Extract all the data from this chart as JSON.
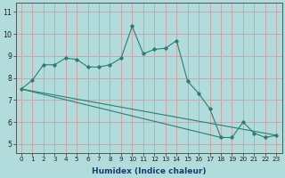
{
  "xlabel": "Humidex (Indice chaleur)",
  "background_color": "#b2dcdc",
  "grid_color": "#c8a8a8",
  "line_color": "#2e7d72",
  "x_values": [
    0,
    1,
    2,
    3,
    4,
    5,
    6,
    7,
    8,
    9,
    10,
    11,
    12,
    13,
    14,
    15,
    16,
    17,
    18,
    19,
    20,
    21,
    22,
    23
  ],
  "line1_y": [
    7.5,
    7.9,
    8.6,
    8.6,
    8.9,
    8.85,
    8.5,
    8.5,
    8.6,
    8.9,
    10.35,
    9.1,
    9.3,
    9.35,
    9.7,
    7.85,
    7.3,
    6.6,
    5.3,
    5.3,
    6.0,
    5.5,
    5.3,
    5.4
  ],
  "line2_x": [
    0,
    23
  ],
  "line2_y": [
    7.5,
    5.4
  ],
  "line3_x": [
    0,
    18
  ],
  "line3_y": [
    7.5,
    5.3
  ],
  "ylim": [
    4.6,
    11.4
  ],
  "xlim": [
    -0.5,
    23.5
  ],
  "yticks": [
    5,
    6,
    7,
    8,
    9,
    10,
    11
  ],
  "xtick_labels": [
    "0",
    "1",
    "2",
    "3",
    "4",
    "5",
    "6",
    "7",
    "8",
    "9",
    "10",
    "11",
    "12",
    "13",
    "14",
    "15",
    "16",
    "17",
    "18",
    "19",
    "20",
    "21",
    "22",
    "23"
  ],
  "xlabel_color": "#1a3a6e",
  "tick_fontsize": 5.2,
  "xlabel_fontsize": 6.5
}
